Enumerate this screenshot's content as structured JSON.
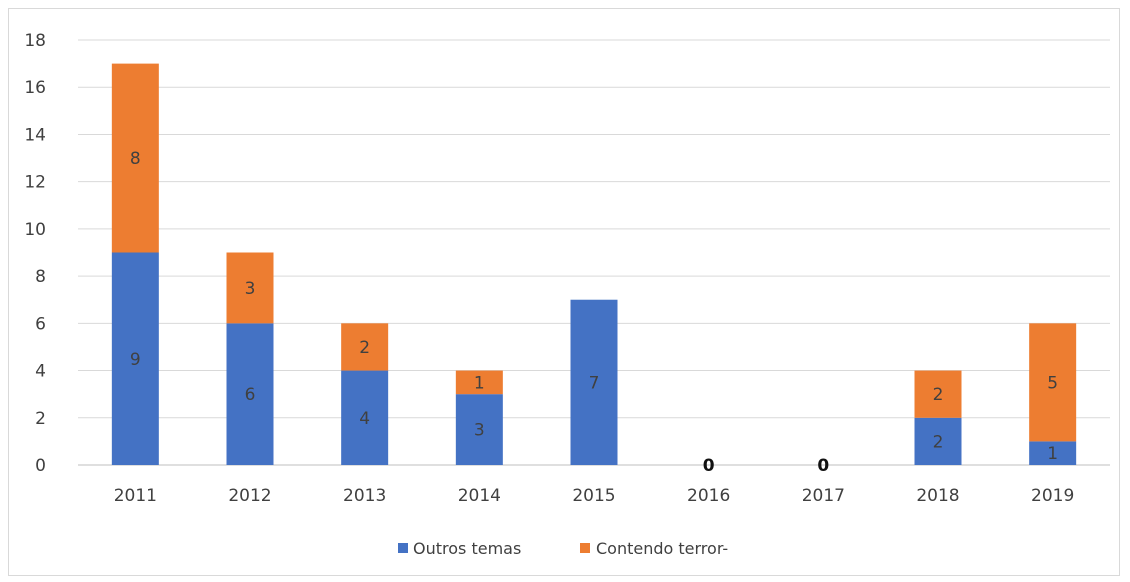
{
  "chart_data": {
    "type": "bar",
    "stacked": true,
    "categories": [
      "2011",
      "2012",
      "2013",
      "2014",
      "2015",
      "2016",
      "2017",
      "2018",
      "2019"
    ],
    "series": [
      {
        "name": "Outros temas",
        "color": "#4472c4",
        "values": [
          9,
          6,
          4,
          3,
          7,
          0,
          0,
          2,
          1
        ]
      },
      {
        "name": "Contendo terror-",
        "color": "#ed7d31",
        "values": [
          8,
          3,
          2,
          1,
          0,
          0,
          0,
          2,
          5
        ]
      }
    ],
    "y_ticks": [
      "0",
      "2",
      "4",
      "6",
      "8",
      "10",
      "12",
      "14",
      "16",
      "18"
    ],
    "ylim": [
      0,
      18
    ],
    "grid": true,
    "legend_position": "bottom",
    "title": "",
    "xlabel": "",
    "ylabel": ""
  }
}
